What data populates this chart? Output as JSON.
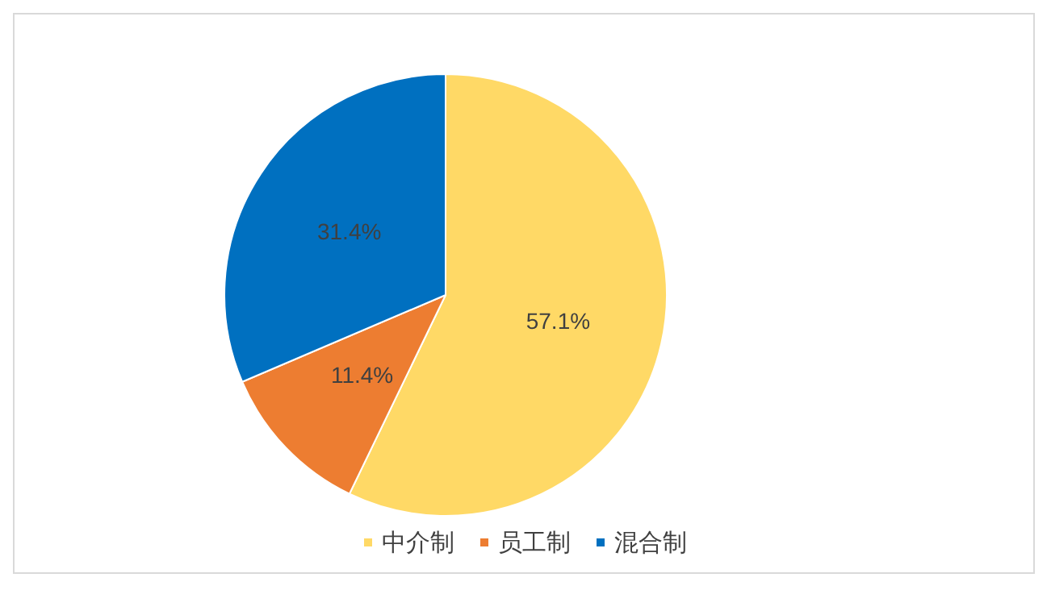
{
  "chart_data": {
    "type": "pie",
    "categories": [
      "中介制",
      "员工制",
      "混合制"
    ],
    "values": [
      57.1,
      11.4,
      31.4
    ],
    "colors": [
      "#ffd966",
      "#ed7d31",
      "#0070c0"
    ],
    "value_labels": [
      "57.1%",
      "11.4%",
      "31.4%"
    ],
    "legend": "bottom"
  }
}
